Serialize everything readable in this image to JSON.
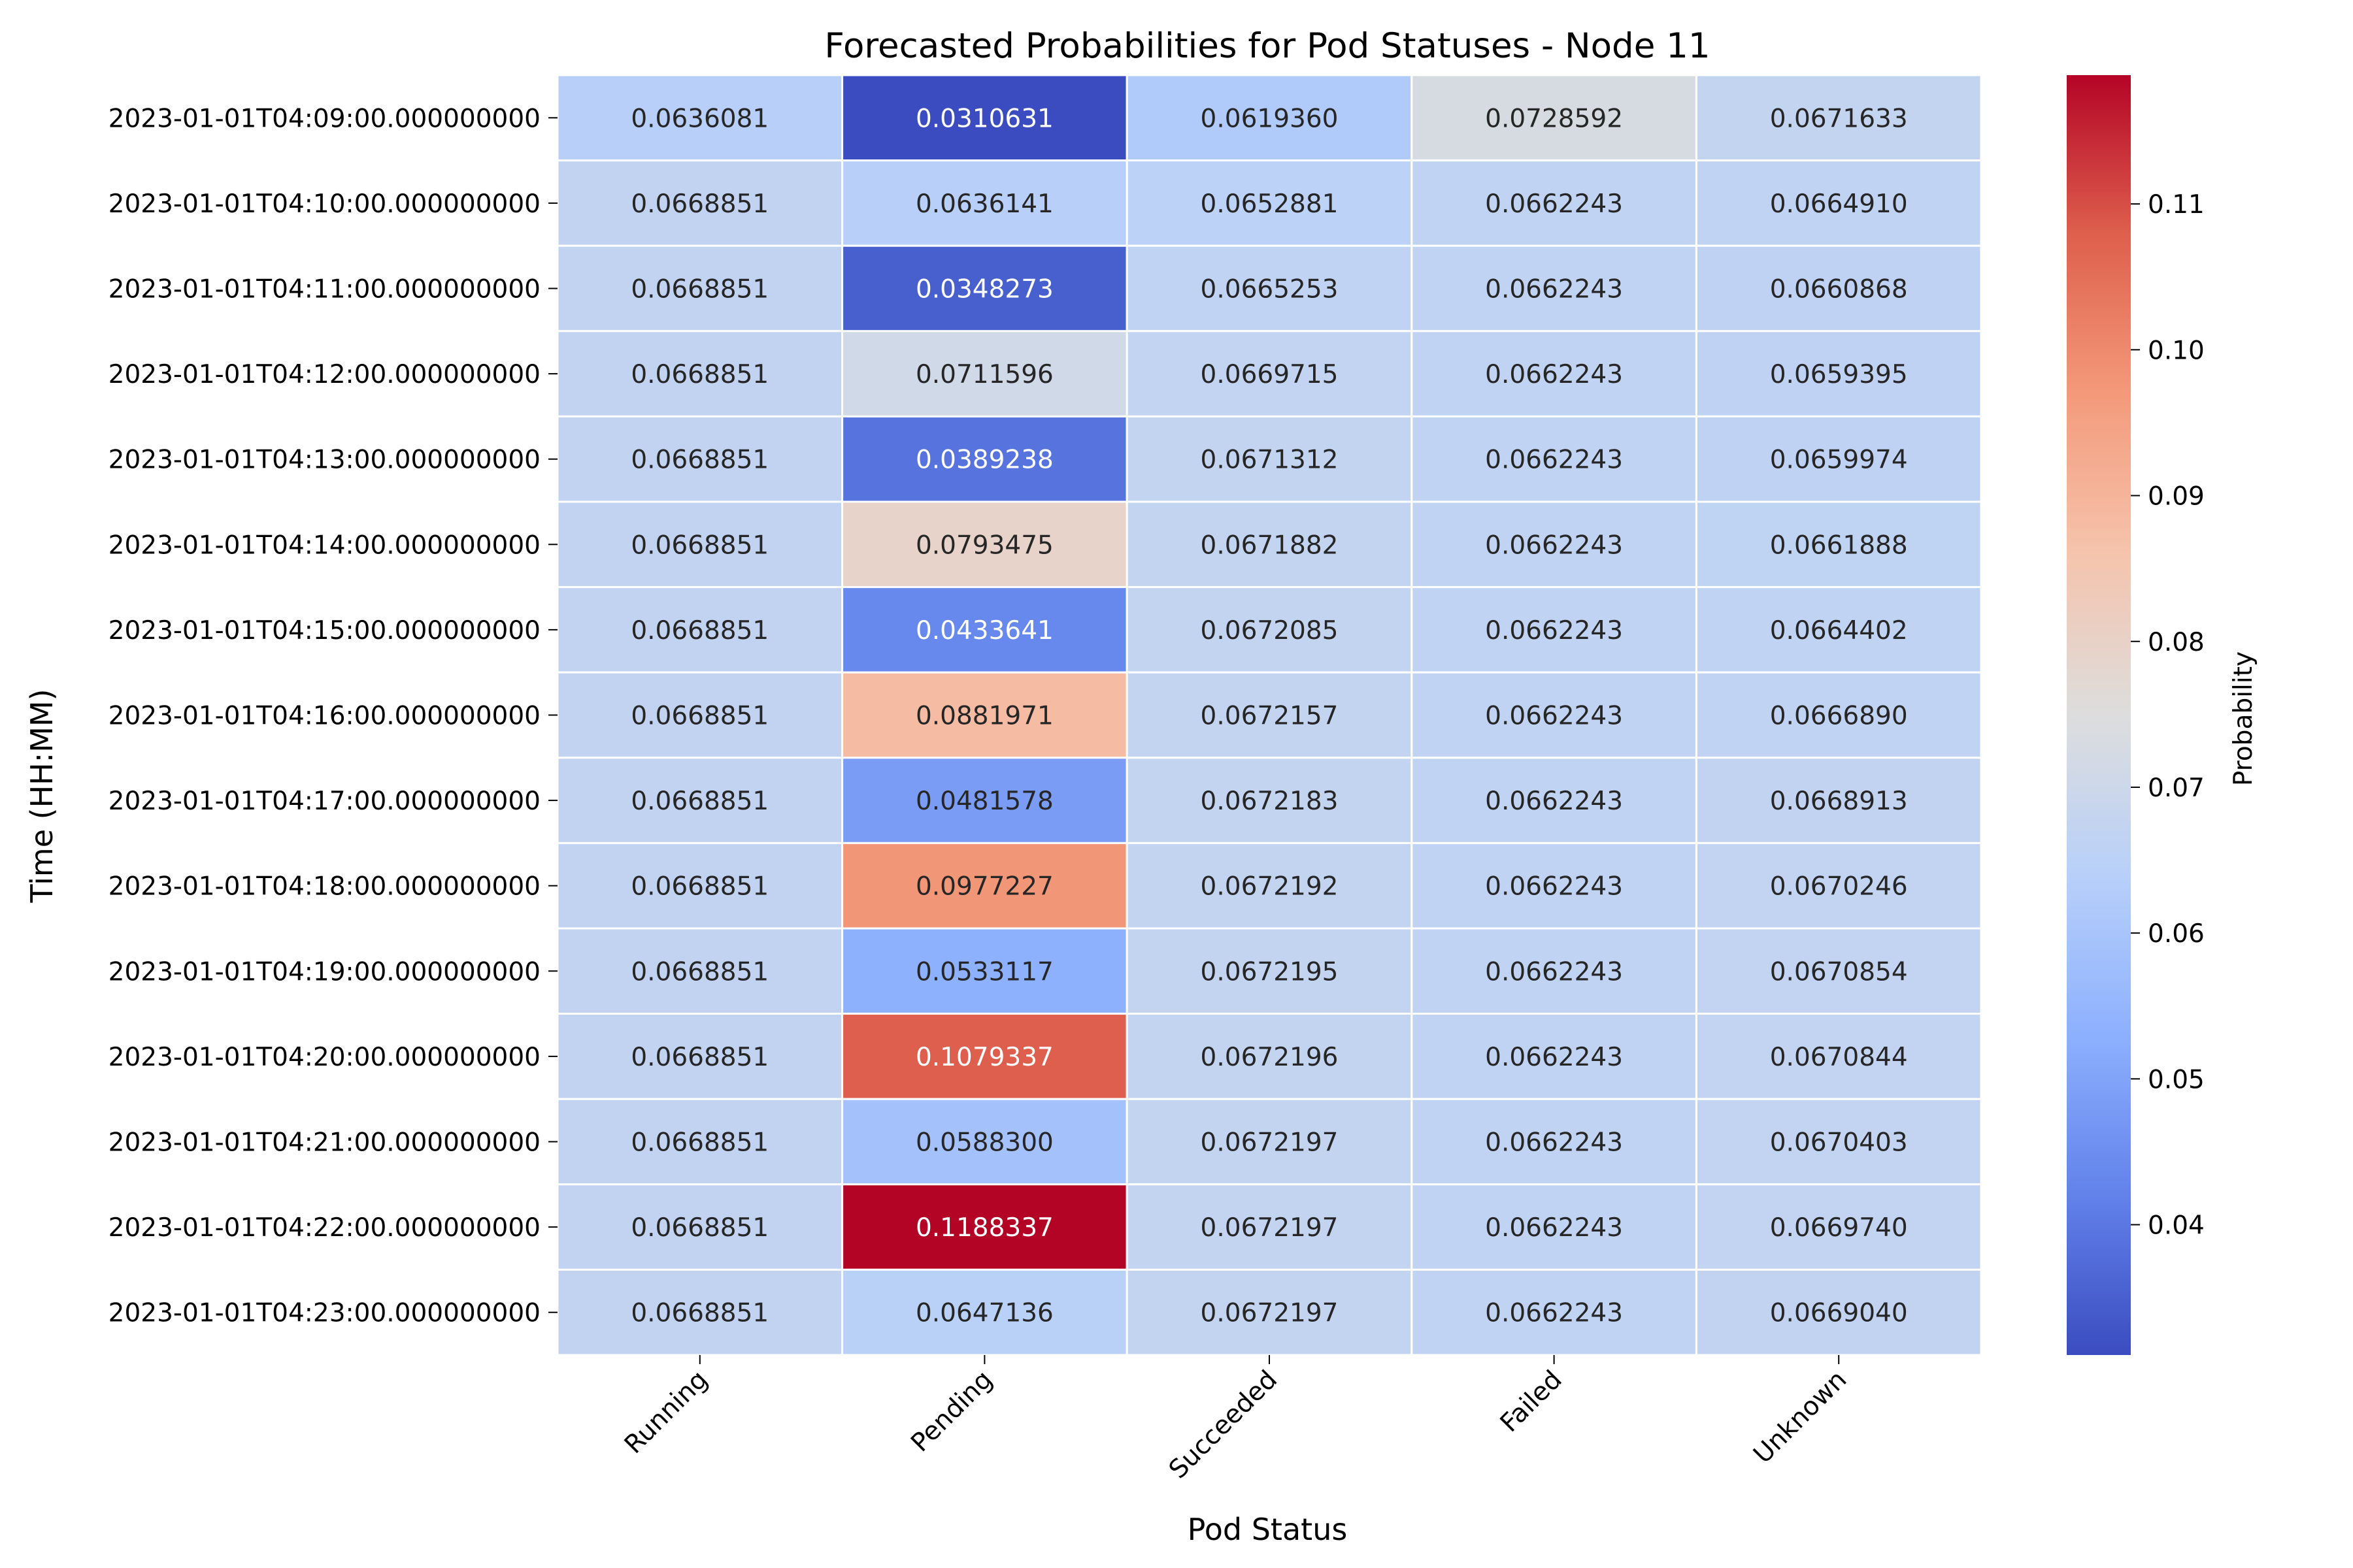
{
  "chart_data": {
    "type": "heatmap",
    "title": "Forecasted Probabilities for Pod Statuses - Node 11",
    "xlabel": "Pod Status",
    "ylabel": "Time (HH:MM)",
    "colorbar_label": "Probability",
    "colormap": "coolwarm",
    "value_range": [
      0.0310631,
      0.1188337
    ],
    "colorbar_ticks": [
      0.04,
      0.05,
      0.06,
      0.07,
      0.08,
      0.09,
      0.1,
      0.11
    ],
    "colorbar_tick_labels": [
      "0.04",
      "0.05",
      "0.06",
      "0.07",
      "0.08",
      "0.09",
      "0.10",
      "0.11"
    ],
    "columns": [
      "Running",
      "Pending",
      "Succeeded",
      "Failed",
      "Unknown"
    ],
    "rows": [
      "2023-01-01T04:09:00.000000000",
      "2023-01-01T04:10:00.000000000",
      "2023-01-01T04:11:00.000000000",
      "2023-01-01T04:12:00.000000000",
      "2023-01-01T04:13:00.000000000",
      "2023-01-01T04:14:00.000000000",
      "2023-01-01T04:15:00.000000000",
      "2023-01-01T04:16:00.000000000",
      "2023-01-01T04:17:00.000000000",
      "2023-01-01T04:18:00.000000000",
      "2023-01-01T04:19:00.000000000",
      "2023-01-01T04:20:00.000000000",
      "2023-01-01T04:21:00.000000000",
      "2023-01-01T04:22:00.000000000",
      "2023-01-01T04:23:00.000000000"
    ],
    "values": [
      [
        "0.0636081",
        "0.0310631",
        "0.0619360",
        "0.0728592",
        "0.0671633"
      ],
      [
        "0.0668851",
        "0.0636141",
        "0.0652881",
        "0.0662243",
        "0.0664910"
      ],
      [
        "0.0668851",
        "0.0348273",
        "0.0665253",
        "0.0662243",
        "0.0660868"
      ],
      [
        "0.0668851",
        "0.0711596",
        "0.0669715",
        "0.0662243",
        "0.0659395"
      ],
      [
        "0.0668851",
        "0.0389238",
        "0.0671312",
        "0.0662243",
        "0.0659974"
      ],
      [
        "0.0668851",
        "0.0793475",
        "0.0671882",
        "0.0662243",
        "0.0661888"
      ],
      [
        "0.0668851",
        "0.0433641",
        "0.0672085",
        "0.0662243",
        "0.0664402"
      ],
      [
        "0.0668851",
        "0.0881971",
        "0.0672157",
        "0.0662243",
        "0.0666890"
      ],
      [
        "0.0668851",
        "0.0481578",
        "0.0672183",
        "0.0662243",
        "0.0668913"
      ],
      [
        "0.0668851",
        "0.0977227",
        "0.0672192",
        "0.0662243",
        "0.0670246"
      ],
      [
        "0.0668851",
        "0.0533117",
        "0.0672195",
        "0.0662243",
        "0.0670854"
      ],
      [
        "0.0668851",
        "0.1079337",
        "0.0672196",
        "0.0662243",
        "0.0670844"
      ],
      [
        "0.0668851",
        "0.0588300",
        "0.0672197",
        "0.0662243",
        "0.0670403"
      ],
      [
        "0.0668851",
        "0.1188337",
        "0.0672197",
        "0.0662243",
        "0.0669740"
      ],
      [
        "0.0668851",
        "0.0647136",
        "0.0672197",
        "0.0662243",
        "0.0669040"
      ]
    ]
  }
}
